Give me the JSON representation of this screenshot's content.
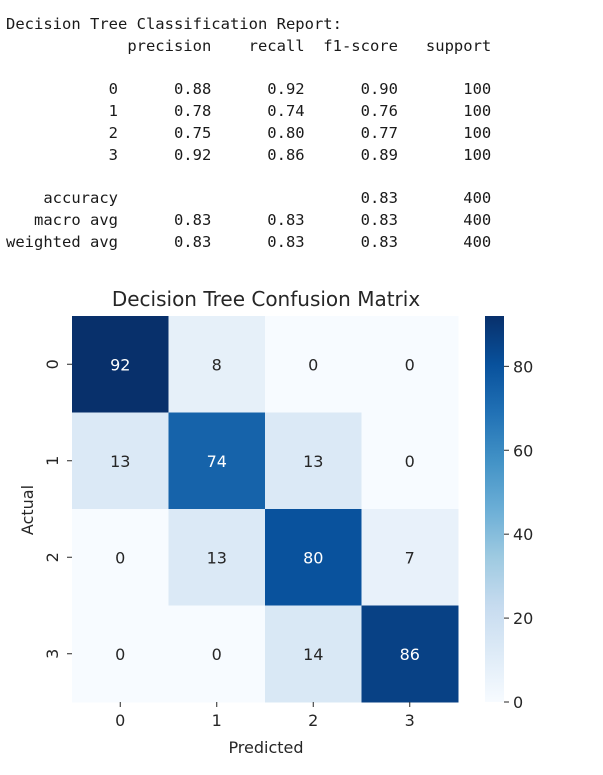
{
  "report": {
    "title": "Decision Tree Classification Report:",
    "headers": [
      "precision",
      "recall",
      "f1-score",
      "support"
    ],
    "rows": [
      {
        "label": "0",
        "precision": "0.88",
        "recall": "0.92",
        "f1": "0.90",
        "support": "100"
      },
      {
        "label": "1",
        "precision": "0.78",
        "recall": "0.74",
        "f1": "0.76",
        "support": "100"
      },
      {
        "label": "2",
        "precision": "0.75",
        "recall": "0.80",
        "f1": "0.77",
        "support": "100"
      },
      {
        "label": "3",
        "precision": "0.92",
        "recall": "0.86",
        "f1": "0.89",
        "support": "100"
      }
    ],
    "summary": [
      {
        "label": "accuracy",
        "precision": "",
        "recall": "",
        "f1": "0.83",
        "support": "400"
      },
      {
        "label": "macro avg",
        "precision": "0.83",
        "recall": "0.83",
        "f1": "0.83",
        "support": "400"
      },
      {
        "label": "weighted avg",
        "precision": "0.83",
        "recall": "0.83",
        "f1": "0.83",
        "support": "400"
      }
    ]
  },
  "chart_data": {
    "type": "heatmap",
    "title": "Decision Tree Confusion Matrix",
    "xlabel": "Predicted",
    "ylabel": "Actual",
    "x_categories": [
      "0",
      "1",
      "2",
      "3"
    ],
    "y_categories": [
      "0",
      "1",
      "2",
      "3"
    ],
    "values": [
      [
        92,
        8,
        0,
        0
      ],
      [
        13,
        74,
        13,
        0
      ],
      [
        0,
        13,
        80,
        7
      ],
      [
        0,
        0,
        14,
        86
      ]
    ],
    "colormap": "Blues",
    "colorbar": {
      "range": [
        0,
        92
      ],
      "ticks": [
        0,
        20,
        40,
        60,
        80
      ]
    },
    "annotations": true
  }
}
